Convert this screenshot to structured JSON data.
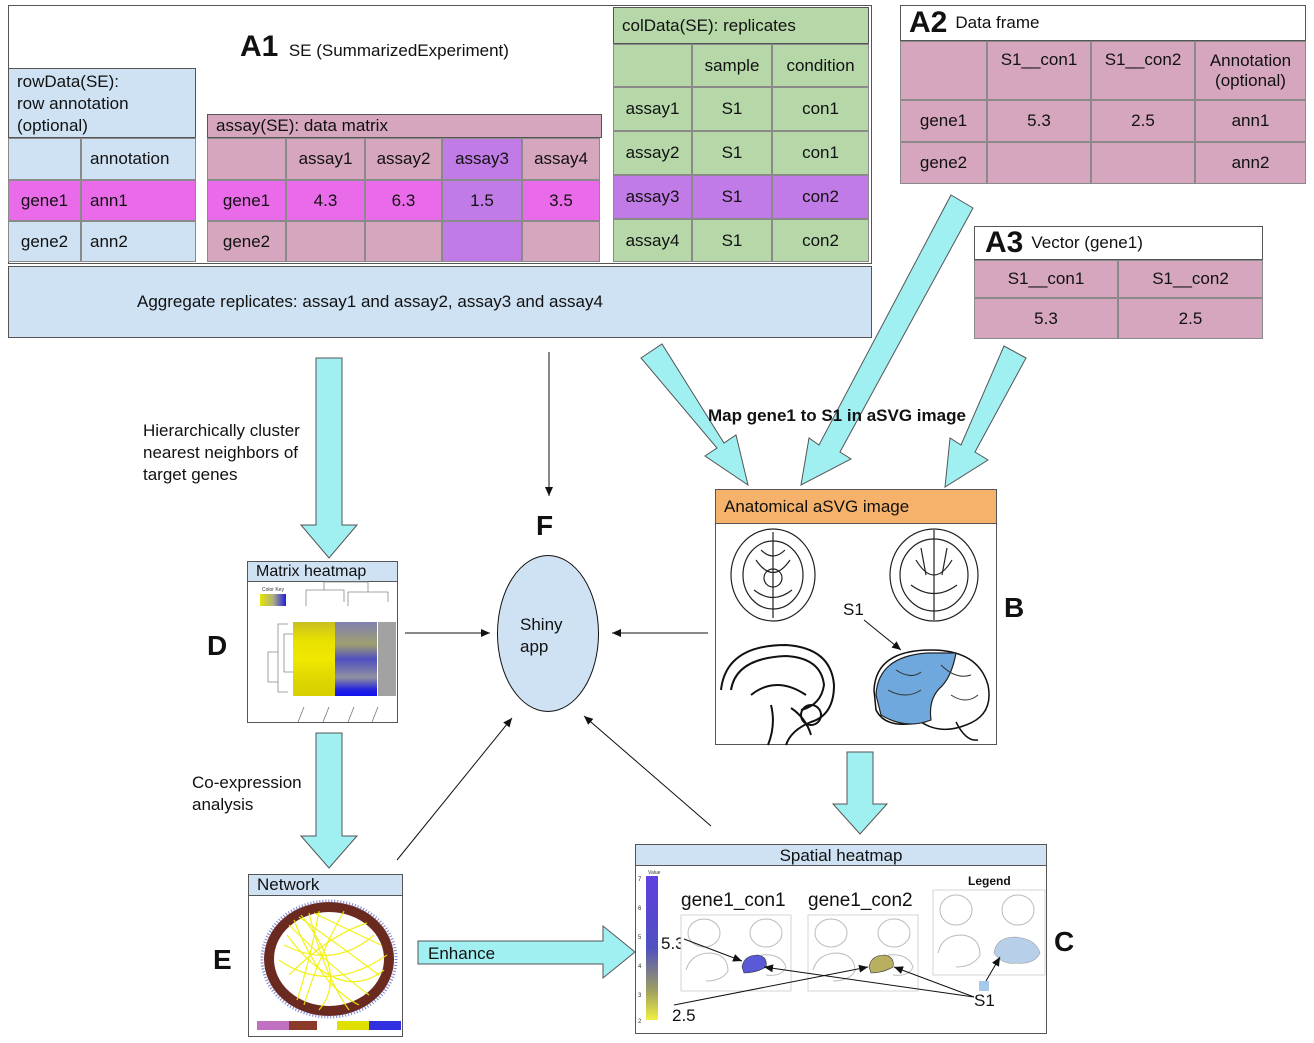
{
  "a1": {
    "letter": "A1",
    "title": "SE (SummarizedExperiment)",
    "rowdata": {
      "title": "rowData(SE):\nrow annotation\n(optional)",
      "header": [
        "",
        "annotation"
      ],
      "rows": [
        [
          "gene1",
          "ann1"
        ],
        [
          "gene2",
          "ann2"
        ]
      ]
    },
    "assay": {
      "title": "assay(SE): data matrix",
      "header": [
        "",
        "assay1",
        "assay2",
        "assay3",
        "assay4"
      ],
      "rows": [
        [
          "gene1",
          "4.3",
          "6.3",
          "1.5",
          "3.5"
        ],
        [
          "gene2",
          "",
          "",
          "",
          ""
        ]
      ]
    },
    "coldata": {
      "title": "colData(SE): replicates",
      "header": [
        "",
        "sample",
        "condition"
      ],
      "rows": [
        [
          "assay1",
          "S1",
          "con1"
        ],
        [
          "assay2",
          "S1",
          "con1"
        ],
        [
          "assay3",
          "S1",
          "con2"
        ],
        [
          "assay4",
          "S1",
          "con2"
        ]
      ]
    }
  },
  "a2": {
    "letter": "A2",
    "title": "Data frame",
    "header": [
      "",
      "S1__con1",
      "S1__con2",
      "Annotation\n(optional)"
    ],
    "rows": [
      [
        "gene1",
        "5.3",
        "2.5",
        "ann1"
      ],
      [
        "gene2",
        "",
        "",
        "ann2"
      ]
    ]
  },
  "a3": {
    "letter": "A3",
    "title": "Vector (gene1)",
    "header": [
      "S1__con1",
      "S1__con2"
    ],
    "values": [
      "5.3",
      "2.5"
    ]
  },
  "aggregate_label": "Aggregate replicates: assay1 and assay2, assay3 and assay4",
  "map_label": "Map gene1 to S1 in aSVG image",
  "cluster_label": "Hierarchically cluster\nnearest neighbors of\ntarget genes",
  "coexpr_label": "Co-expression\nanalysis",
  "enhance_label": "Enhance",
  "b": {
    "letter": "B",
    "title": "Anatomical aSVG image",
    "s1_label": "S1"
  },
  "c": {
    "letter": "C",
    "title": "Spatial heatmap",
    "panel1": "gene1_con1",
    "panel2": "gene1_con2",
    "legend": "Legend",
    "scale_title": "Value",
    "scale_ticks": [
      "7",
      "6",
      "5",
      "4",
      "3",
      "2"
    ],
    "val_high": "5.3",
    "val_low": "2.5",
    "s1_label": "S1"
  },
  "d": {
    "letter": "D",
    "title": "Matrix heatmap",
    "colorkey": "Color Key"
  },
  "e": {
    "letter": "E",
    "title": "Network"
  },
  "f": {
    "letter": "F",
    "label": "Shiny\napp"
  },
  "colors": {
    "cyan_arrow": "#a0f0f2",
    "blue_box": "#cfe2f3",
    "pink": "#d5a6bd",
    "magenta": "#ea6be9",
    "purple": "#c17be6",
    "green": "#b6d7a8",
    "orange": "#f6b26b"
  }
}
